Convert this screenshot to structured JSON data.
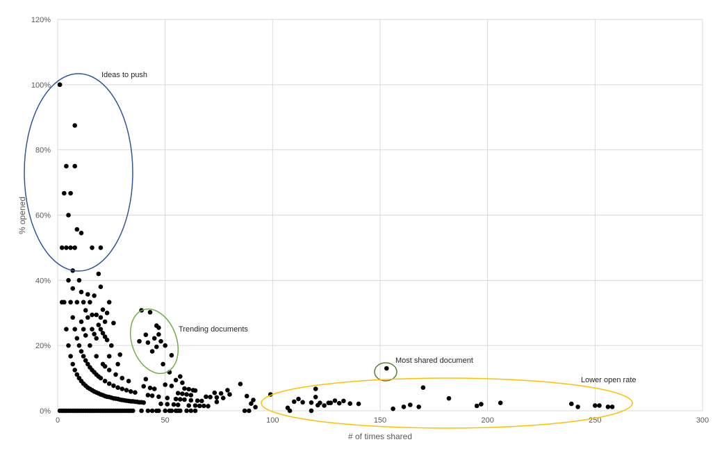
{
  "chart_data": {
    "type": "scatter",
    "xlabel": "# of times shared",
    "ylabel": "% opened",
    "xlim": [
      0,
      300
    ],
    "ylim": [
      0,
      1.2
    ],
    "xticks": [
      "0",
      "50",
      "100",
      "150",
      "200",
      "250",
      "300"
    ],
    "yticks": [
      "0%",
      "20%",
      "40%",
      "60%",
      "80%",
      "100%",
      "120%"
    ],
    "grid": true,
    "marker_color": "#000000",
    "annotations": [
      {
        "label": "Ideas to push",
        "color": "#2f5597"
      },
      {
        "label": "Trending documents",
        "color": "#70ad47"
      },
      {
        "label": "Most shared document",
        "color": "#548235"
      },
      {
        "label": "Lower open rate",
        "color": "#ffc000"
      }
    ],
    "points": [
      [
        1,
        1.0
      ],
      [
        1,
        1.0
      ],
      [
        8,
        0.875
      ],
      [
        4,
        0.75
      ],
      [
        8,
        0.75
      ],
      [
        3,
        0.667
      ],
      [
        6,
        0.667
      ],
      [
        5,
        0.6
      ],
      [
        9,
        0.556
      ],
      [
        11,
        0.545
      ],
      [
        2,
        0.5
      ],
      [
        4,
        0.5
      ],
      [
        6,
        0.5
      ],
      [
        8,
        0.5
      ],
      [
        16,
        0.5
      ],
      [
        20,
        0.5
      ],
      [
        7,
        0.43
      ],
      [
        19,
        0.42
      ],
      [
        5,
        0.4
      ],
      [
        10,
        0.4
      ],
      [
        20,
        0.38
      ],
      [
        7,
        0.375
      ],
      [
        11,
        0.364
      ],
      [
        14,
        0.357
      ],
      [
        17,
        0.353
      ],
      [
        2,
        0.333
      ],
      [
        3,
        0.333
      ],
      [
        6,
        0.333
      ],
      [
        9,
        0.333
      ],
      [
        12,
        0.333
      ],
      [
        15,
        0.333
      ],
      [
        24,
        0.333
      ],
      [
        21,
        0.31
      ],
      [
        23,
        0.3
      ],
      [
        18,
        0.294
      ],
      [
        16,
        0.294
      ],
      [
        13,
        0.308
      ],
      [
        20,
        0.286
      ],
      [
        11,
        0.273
      ],
      [
        14,
        0.286
      ],
      [
        22,
        0.273
      ],
      [
        7,
        0.286
      ],
      [
        4,
        0.25
      ],
      [
        8,
        0.25
      ],
      [
        12,
        0.25
      ],
      [
        16,
        0.25
      ],
      [
        20,
        0.25
      ],
      [
        26,
        0.269
      ],
      [
        19,
        0.263
      ],
      [
        10,
        0.2
      ],
      [
        13,
        0.231
      ],
      [
        17,
        0.235
      ],
      [
        9,
        0.222
      ],
      [
        21,
        0.238
      ],
      [
        22,
        0.227
      ],
      [
        23,
        0.217
      ],
      [
        5,
        0.2
      ],
      [
        15,
        0.2
      ],
      [
        18,
        0.222
      ],
      [
        25,
        0.2
      ],
      [
        11,
        0.182
      ],
      [
        6,
        0.167
      ],
      [
        12,
        0.167
      ],
      [
        18,
        0.167
      ],
      [
        24,
        0.167
      ],
      [
        29,
        0.172
      ],
      [
        13,
        0.154
      ],
      [
        14,
        0.143
      ],
      [
        7,
        0.143
      ],
      [
        21,
        0.143
      ],
      [
        28,
        0.143
      ],
      [
        15,
        0.133
      ],
      [
        22,
        0.136
      ],
      [
        8,
        0.125
      ],
      [
        16,
        0.125
      ],
      [
        24,
        0.125
      ],
      [
        17,
        0.118
      ],
      [
        9,
        0.111
      ],
      [
        18,
        0.111
      ],
      [
        27,
        0.111
      ],
      [
        10,
        0.1
      ],
      [
        19,
        0.105
      ],
      [
        20,
        0.1
      ],
      [
        30,
        0.1
      ],
      [
        11,
        0.091
      ],
      [
        22,
        0.091
      ],
      [
        33,
        0.091
      ],
      [
        12,
        0.083
      ],
      [
        24,
        0.083
      ],
      [
        13,
        0.077
      ],
      [
        26,
        0.077
      ],
      [
        14,
        0.071
      ],
      [
        28,
        0.071
      ],
      [
        15,
        0.067
      ],
      [
        30,
        0.067
      ],
      [
        16,
        0.063
      ],
      [
        32,
        0.063
      ],
      [
        17,
        0.059
      ],
      [
        34,
        0.059
      ],
      [
        18,
        0.056
      ],
      [
        36,
        0.056
      ],
      [
        19,
        0.053
      ],
      [
        20,
        0.05
      ],
      [
        21,
        0.048
      ],
      [
        22,
        0.045
      ],
      [
        23,
        0.043
      ],
      [
        24,
        0.042
      ],
      [
        25,
        0.04
      ],
      [
        26,
        0.038
      ],
      [
        27,
        0.037
      ],
      [
        28,
        0.036
      ],
      [
        29,
        0.034
      ],
      [
        30,
        0.033
      ],
      [
        31,
        0.032
      ],
      [
        32,
        0.031
      ],
      [
        33,
        0.03
      ],
      [
        34,
        0.029
      ],
      [
        35,
        0.029
      ],
      [
        36,
        0.028
      ],
      [
        37,
        0.027
      ],
      [
        38,
        0.026
      ],
      [
        39,
        0.026
      ],
      [
        40,
        0.025
      ],
      [
        1,
        0
      ],
      [
        2,
        0
      ],
      [
        3,
        0
      ],
      [
        4,
        0
      ],
      [
        5,
        0
      ],
      [
        6,
        0
      ],
      [
        7,
        0
      ],
      [
        8,
        0
      ],
      [
        9,
        0
      ],
      [
        10,
        0
      ],
      [
        11,
        0
      ],
      [
        12,
        0
      ],
      [
        13,
        0
      ],
      [
        14,
        0
      ],
      [
        15,
        0
      ],
      [
        16,
        0
      ],
      [
        17,
        0
      ],
      [
        18,
        0
      ],
      [
        19,
        0
      ],
      [
        20,
        0
      ],
      [
        21,
        0
      ],
      [
        22,
        0
      ],
      [
        23,
        0
      ],
      [
        24,
        0
      ],
      [
        25,
        0
      ],
      [
        26,
        0
      ],
      [
        27,
        0
      ],
      [
        28,
        0
      ],
      [
        29,
        0
      ],
      [
        30,
        0
      ],
      [
        31,
        0
      ],
      [
        32,
        0
      ],
      [
        33,
        0
      ],
      [
        34,
        0
      ],
      [
        35,
        0
      ],
      [
        39,
        0
      ],
      [
        42,
        0
      ],
      [
        44,
        0
      ],
      [
        46,
        0
      ],
      [
        47,
        0
      ],
      [
        50,
        0
      ],
      [
        52,
        0
      ],
      [
        53,
        0
      ],
      [
        55,
        0
      ],
      [
        56,
        0
      ],
      [
        57,
        0
      ],
      [
        60,
        0
      ],
      [
        62,
        0
      ],
      [
        64,
        0
      ],
      [
        87,
        0
      ],
      [
        89,
        0
      ],
      [
        108,
        0
      ],
      [
        118,
        0
      ],
      [
        39,
        0.308
      ],
      [
        43,
        0.302
      ],
      [
        38,
        0.213
      ],
      [
        41,
        0.233
      ],
      [
        42,
        0.209
      ],
      [
        45,
        0.222
      ],
      [
        46,
        0.261
      ],
      [
        47,
        0.255
      ],
      [
        47,
        0.234
      ],
      [
        48,
        0.213
      ],
      [
        46,
        0.196
      ],
      [
        50,
        0.2
      ],
      [
        44,
        0.182
      ],
      [
        49,
        0.143
      ],
      [
        53,
        0.17
      ],
      [
        52,
        0.118
      ],
      [
        57,
        0.105
      ],
      [
        55,
        0.094
      ],
      [
        41,
        0.097
      ],
      [
        40,
        0.075
      ],
      [
        43,
        0.07
      ],
      [
        45,
        0.067
      ],
      [
        50,
        0.08
      ],
      [
        53,
        0.076
      ],
      [
        58,
        0.086
      ],
      [
        59,
        0.068
      ],
      [
        61,
        0.066
      ],
      [
        63,
        0.063
      ],
      [
        64,
        0.062
      ],
      [
        56,
        0.054
      ],
      [
        58,
        0.052
      ],
      [
        60,
        0.05
      ],
      [
        62,
        0.048
      ],
      [
        65,
        0.031
      ],
      [
        67,
        0.03
      ],
      [
        69,
        0.043
      ],
      [
        71,
        0.042
      ],
      [
        73,
        0.055
      ],
      [
        74,
        0.041
      ],
      [
        76,
        0.053
      ],
      [
        77,
        0.039
      ],
      [
        79,
        0.063
      ],
      [
        80,
        0.05
      ],
      [
        85,
        0.082
      ],
      [
        59,
        0.034
      ],
      [
        57,
        0.035
      ],
      [
        55,
        0.036
      ],
      [
        62,
        0.032
      ],
      [
        64,
        0.016
      ],
      [
        66,
        0.015
      ],
      [
        68,
        0.015
      ],
      [
        70,
        0.014
      ],
      [
        61,
        0.016
      ],
      [
        48,
        0.021
      ],
      [
        54,
        0.019
      ],
      [
        56,
        0.018
      ],
      [
        51,
        0.039
      ],
      [
        44,
        0.046
      ],
      [
        47,
        0.043
      ],
      [
        42,
        0.048
      ],
      [
        51,
        0.02
      ],
      [
        74,
        0.027
      ],
      [
        90,
        0.022
      ],
      [
        92,
        0.011
      ],
      [
        99,
        0.05
      ],
      [
        88,
        0.045
      ],
      [
        91,
        0.033
      ],
      [
        107,
        0.009
      ],
      [
        110,
        0.028
      ],
      [
        112,
        0.036
      ],
      [
        114,
        0.026
      ],
      [
        118,
        0.025
      ],
      [
        120,
        0.067
      ],
      [
        120,
        0.042
      ],
      [
        122,
        0.024
      ],
      [
        124,
        0.016
      ],
      [
        126,
        0.024
      ],
      [
        127,
        0.024
      ],
      [
        129,
        0.031
      ],
      [
        131,
        0.023
      ],
      [
        133,
        0.03
      ],
      [
        136,
        0.022
      ],
      [
        140,
        0.021
      ],
      [
        121,
        0.017
      ],
      [
        153,
        0.13
      ],
      [
        156,
        0.006
      ],
      [
        161,
        0.012
      ],
      [
        164,
        0.018
      ],
      [
        168,
        0.012
      ],
      [
        170,
        0.071
      ],
      [
        182,
        0.038
      ],
      [
        195,
        0.015
      ],
      [
        197,
        0.02
      ],
      [
        206,
        0.024
      ],
      [
        239,
        0.021
      ],
      [
        242,
        0.012
      ],
      [
        250,
        0.016
      ],
      [
        252,
        0.016
      ],
      [
        256,
        0.012
      ],
      [
        258,
        0.012
      ]
    ]
  }
}
